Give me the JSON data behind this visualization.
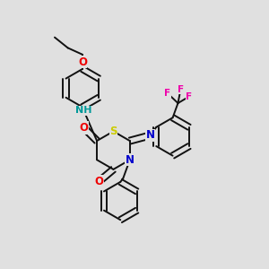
{
  "bg_color": "#e0e0e0",
  "bond_color": "#111111",
  "bond_width": 1.4,
  "atom_colors": {
    "N": "#0000cc",
    "O": "#ee0000",
    "S": "#cccc00",
    "F": "#ee00aa",
    "NH": "#009999",
    "C": "#111111"
  },
  "font_size": 8.5,
  "fig_bg": "#e0e0e0"
}
